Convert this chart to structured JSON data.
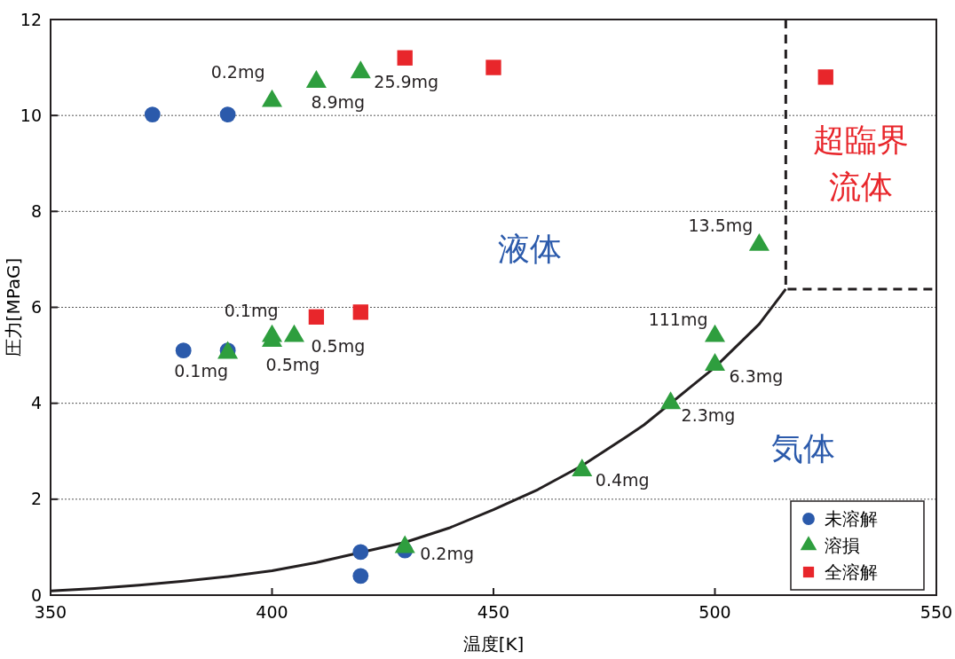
{
  "chart_data": {
    "type": "scatter",
    "xlabel": "温度[K]",
    "ylabel": "圧力[MPaG]",
    "xlim": [
      350,
      550
    ],
    "ylim": [
      0,
      12
    ],
    "xticks": [
      350,
      400,
      450,
      500,
      550
    ],
    "yticks": [
      0,
      2,
      4,
      6,
      8,
      10,
      12
    ],
    "grid": "y",
    "legend": "bottom right",
    "series": [
      {
        "type": "line",
        "marker": "none",
        "line_style": "solid",
        "color": "#231f20",
        "x": [
          350,
          360,
          370,
          380,
          390,
          400,
          410,
          430,
          440,
          450,
          460,
          470,
          480,
          484,
          494,
          500,
          510,
          516
        ],
        "values": [
          0.09,
          0.14,
          0.21,
          0.29,
          0.39,
          0.51,
          0.68,
          1.1,
          1.4,
          1.78,
          2.2,
          2.7,
          3.3,
          3.55,
          4.3,
          4.75,
          5.65,
          6.38
        ]
      },
      {
        "type": "line",
        "marker": "none",
        "line_style": "dashed",
        "color": "#231f20",
        "x": [
          516,
          516,
          550
        ],
        "values": [
          12,
          6.38,
          6.38
        ]
      },
      {
        "name": "未溶解",
        "marker": "circle",
        "color": "#2b5aab",
        "x": [
          373,
          390,
          380,
          390,
          420,
          420,
          430
        ],
        "values": [
          10.02,
          10.02,
          5.1,
          5.1,
          0.9,
          0.4,
          0.93
        ]
      },
      {
        "name": "溶損",
        "marker": "triangle",
        "color": "#2e9e3e",
        "x": [
          400,
          410,
          420,
          390,
          400,
          400,
          405,
          430,
          470,
          490,
          500,
          500,
          510
        ],
        "values": [
          10.3,
          10.7,
          10.9,
          5.05,
          5.4,
          5.3,
          5.4,
          1.0,
          2.6,
          4.0,
          4.8,
          5.4,
          7.3
        ]
      },
      {
        "name": "全溶解",
        "marker": "square",
        "color": "#e8262b",
        "x": [
          430,
          450,
          410,
          420,
          525
        ],
        "values": [
          11.2,
          11.0,
          5.8,
          5.9,
          10.8
        ]
      }
    ],
    "annotations": [
      {
        "text": "0.2mg",
        "x": 400,
        "y": 10.3
      },
      {
        "text": "8.9mg",
        "x": 410,
        "y": 10.7
      },
      {
        "text": "25.9mg",
        "x": 420,
        "y": 10.9
      },
      {
        "text": "0.1mg",
        "x": 390,
        "y": 5.05
      },
      {
        "text": "0.1mg",
        "x": 400,
        "y": 5.4
      },
      {
        "text": "0.5mg",
        "x": 400,
        "y": 5.3
      },
      {
        "text": "0.5mg",
        "x": 405,
        "y": 5.4
      },
      {
        "text": "0.2mg",
        "x": 430,
        "y": 1.0
      },
      {
        "text": "0.4mg",
        "x": 470,
        "y": 2.6
      },
      {
        "text": "2.3mg",
        "x": 490,
        "y": 4.0
      },
      {
        "text": "6.3mg",
        "x": 500,
        "y": 4.8
      },
      {
        "text": "111mg",
        "x": 500,
        "y": 5.4
      },
      {
        "text": "13.5mg",
        "x": 510,
        "y": 7.3
      },
      "液体",
      "気体",
      "超臨界",
      "流体"
    ]
  }
}
